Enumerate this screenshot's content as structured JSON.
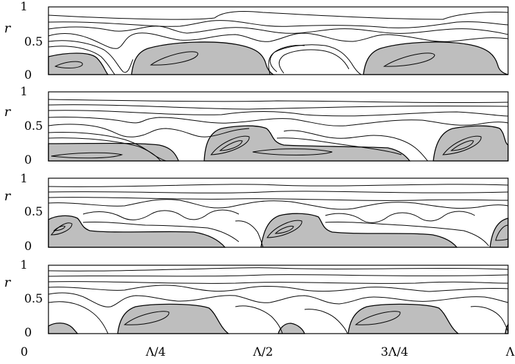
{
  "figure": {
    "panel_count": 4,
    "y_axis": {
      "label": "r",
      "ticks": [
        "0",
        "0.5",
        "1"
      ]
    },
    "x_axis": {
      "ticks": [
        "0",
        "Λ/4",
        "Λ/2",
        "3Λ/4",
        "Λ"
      ]
    },
    "colors": {
      "shaded_region": "#bebebe",
      "lines": "#000000",
      "background": "#ffffff"
    }
  }
}
